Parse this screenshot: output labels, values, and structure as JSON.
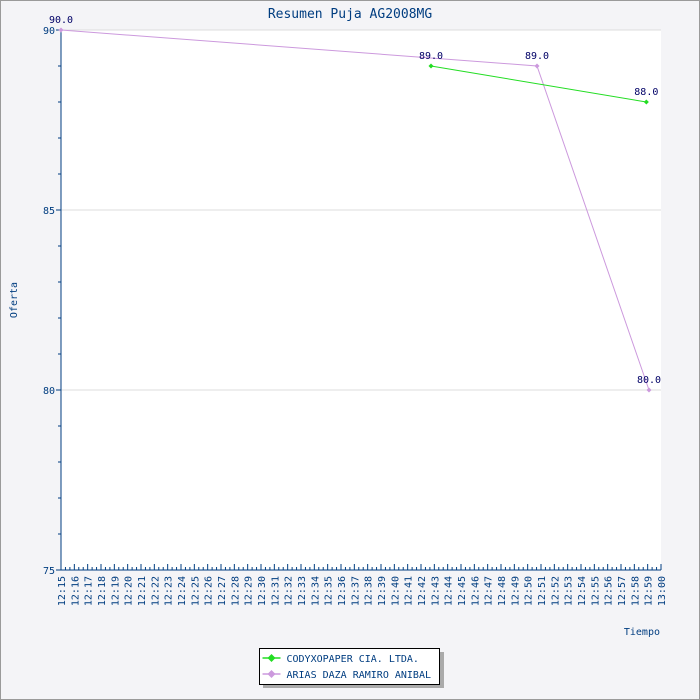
{
  "chart_data": {
    "type": "line",
    "title": "Resumen Puja AG2008MG",
    "xlabel": "Tiempo",
    "ylabel": "Oferta",
    "ylim": [
      75,
      90
    ],
    "yticks": [
      75,
      80,
      85,
      90
    ],
    "xlim": [
      "12:15",
      "13:00"
    ],
    "xticks": [
      "12:15",
      "12:16",
      "12:17",
      "12:18",
      "12:19",
      "12:20",
      "12:21",
      "12:22",
      "12:23",
      "12:24",
      "12:25",
      "12:26",
      "12:27",
      "12:28",
      "12:29",
      "12:30",
      "12:31",
      "12:32",
      "12:33",
      "12:34",
      "12:35",
      "12:36",
      "12:37",
      "12:38",
      "12:39",
      "12:40",
      "12:41",
      "12:42",
      "12:43",
      "12:44",
      "12:45",
      "12:46",
      "12:47",
      "12:48",
      "12:49",
      "12:50",
      "12:51",
      "12:52",
      "12:53",
      "12:54",
      "12:55",
      "12:56",
      "12:57",
      "12:58",
      "12:59",
      "13:00"
    ],
    "grid": true,
    "legend": "bottom-center",
    "series": [
      {
        "name": "CODYXOPAPER CIA. LTDA.",
        "color": "#22dd22",
        "points": [
          {
            "x": "12:42:45",
            "y": 89.0,
            "label": "89.0"
          },
          {
            "x": "12:58:54",
            "y": 88.0,
            "label": "88.0"
          }
        ]
      },
      {
        "name": "ARIAS DAZA RAMIRO ANIBAL",
        "color": "#cc99dd",
        "points": [
          {
            "x": "12:15:00",
            "y": 90.0,
            "label": "90.0"
          },
          {
            "x": "12:50:42",
            "y": 89.0,
            "label": "89.0"
          },
          {
            "x": "12:59:06",
            "y": 80.0,
            "label": "80.0"
          }
        ]
      }
    ]
  }
}
